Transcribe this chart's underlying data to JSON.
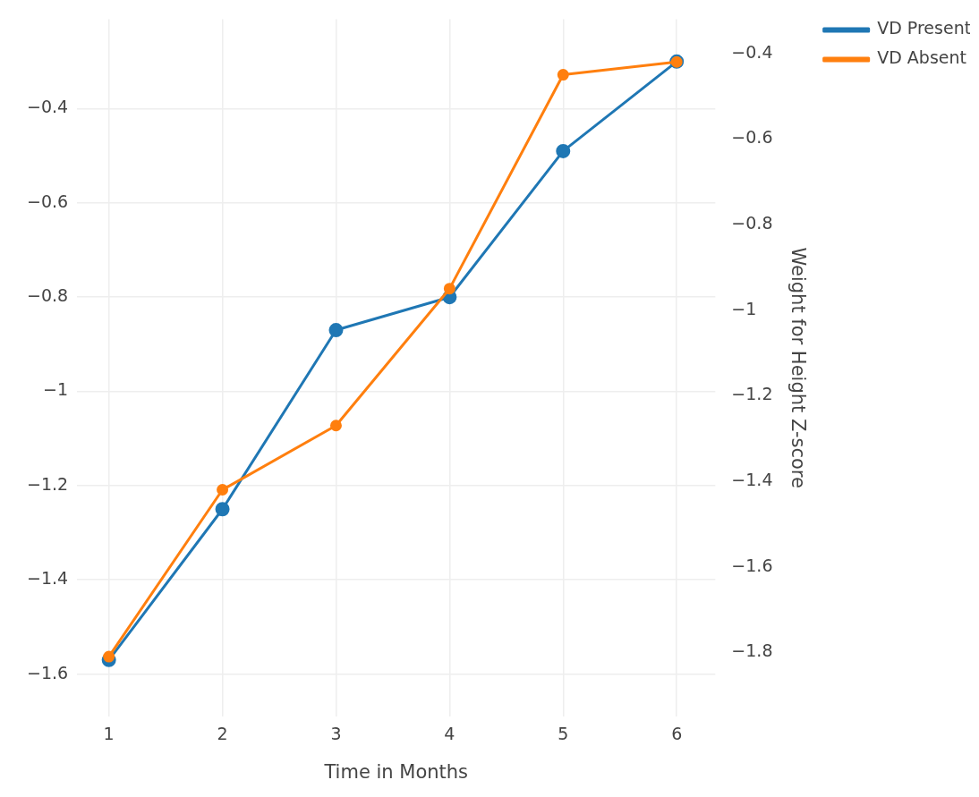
{
  "chart_data": {
    "type": "line",
    "xlabel": "Time in Months",
    "y2label": "Weight for Height Z-score",
    "x": [
      1,
      2,
      3,
      4,
      5,
      6
    ],
    "series": [
      {
        "name": "VD Present",
        "color": "#1f77b4",
        "values": [
          -1.57,
          -1.25,
          -0.87,
          -0.8,
          -0.49,
          -0.3
        ]
      },
      {
        "name": "VD Absent",
        "color": "#ff7f0e",
        "axis": "y2",
        "values": [
          -1.81,
          -1.42,
          -1.27,
          -0.95,
          -0.45,
          -0.42
        ]
      }
    ],
    "xlim": [
      0.72,
      6.34
    ],
    "xticks": [
      1,
      2,
      3,
      4,
      5,
      6
    ],
    "ylim": [
      -1.69,
      -0.21
    ],
    "yticks": [
      -1.6,
      -1.4,
      -1.2,
      -1,
      -0.8,
      -0.6,
      -0.4
    ],
    "y2lim": [
      -1.95,
      -0.32
    ],
    "y2ticks": [
      -1.8,
      -1.6,
      -1.4,
      -1.2,
      -1,
      -0.8,
      -0.6,
      -0.4
    ],
    "grid": true,
    "legend": "top right",
    "marker": "circle",
    "line_style": "solid"
  }
}
